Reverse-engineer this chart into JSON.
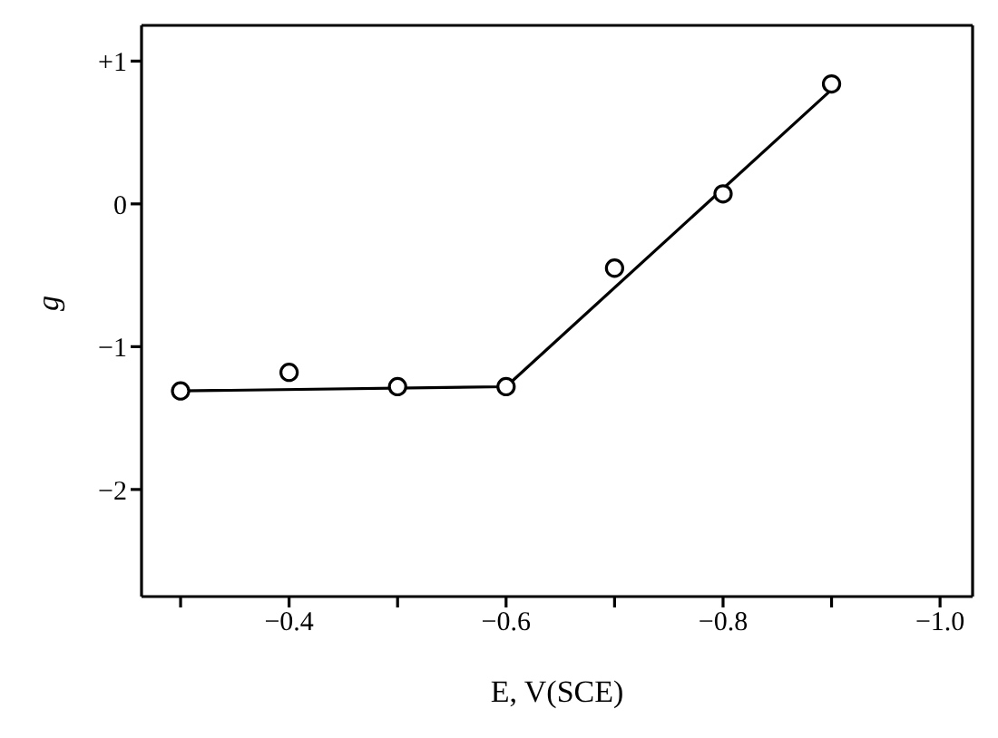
{
  "chart_data": {
    "type": "scatter",
    "xlabel": "E, V(SCE)",
    "ylabel": "g",
    "xlim": [
      -0.264,
      -1.03
    ],
    "ylim": [
      -2.75,
      1.25
    ],
    "xticks": [
      {
        "value": -0.3,
        "label": null
      },
      {
        "value": -0.4,
        "label": "−0.4"
      },
      {
        "value": -0.5,
        "label": null
      },
      {
        "value": -0.6,
        "label": "−0.6"
      },
      {
        "value": -0.7,
        "label": null
      },
      {
        "value": -0.8,
        "label": "−0.8"
      },
      {
        "value": -0.9,
        "label": null
      },
      {
        "value": -1.0,
        "label": "−1.0"
      }
    ],
    "yticks": [
      {
        "value": -2,
        "label": "−2"
      },
      {
        "value": -1,
        "label": "−1"
      },
      0,
      {
        "value": 1,
        "label": "+1"
      }
    ],
    "series": [
      {
        "color": "#000000",
        "marker": "circle",
        "x": [
          -0.3,
          -0.4,
          -0.5,
          -0.6,
          -0.7,
          -0.8,
          -0.9
        ],
        "values": [
          -1.31,
          -1.18,
          -1.28,
          -1.28,
          -0.45,
          0.07,
          0.84
        ]
      },
      {
        "type": "line",
        "color": "#000000",
        "marker": "none",
        "line_style": "solid",
        "x": [
          -0.3,
          -0.6,
          -0.9
        ],
        "values": [
          -1.31,
          -1.28,
          0.8
        ]
      }
    ]
  }
}
